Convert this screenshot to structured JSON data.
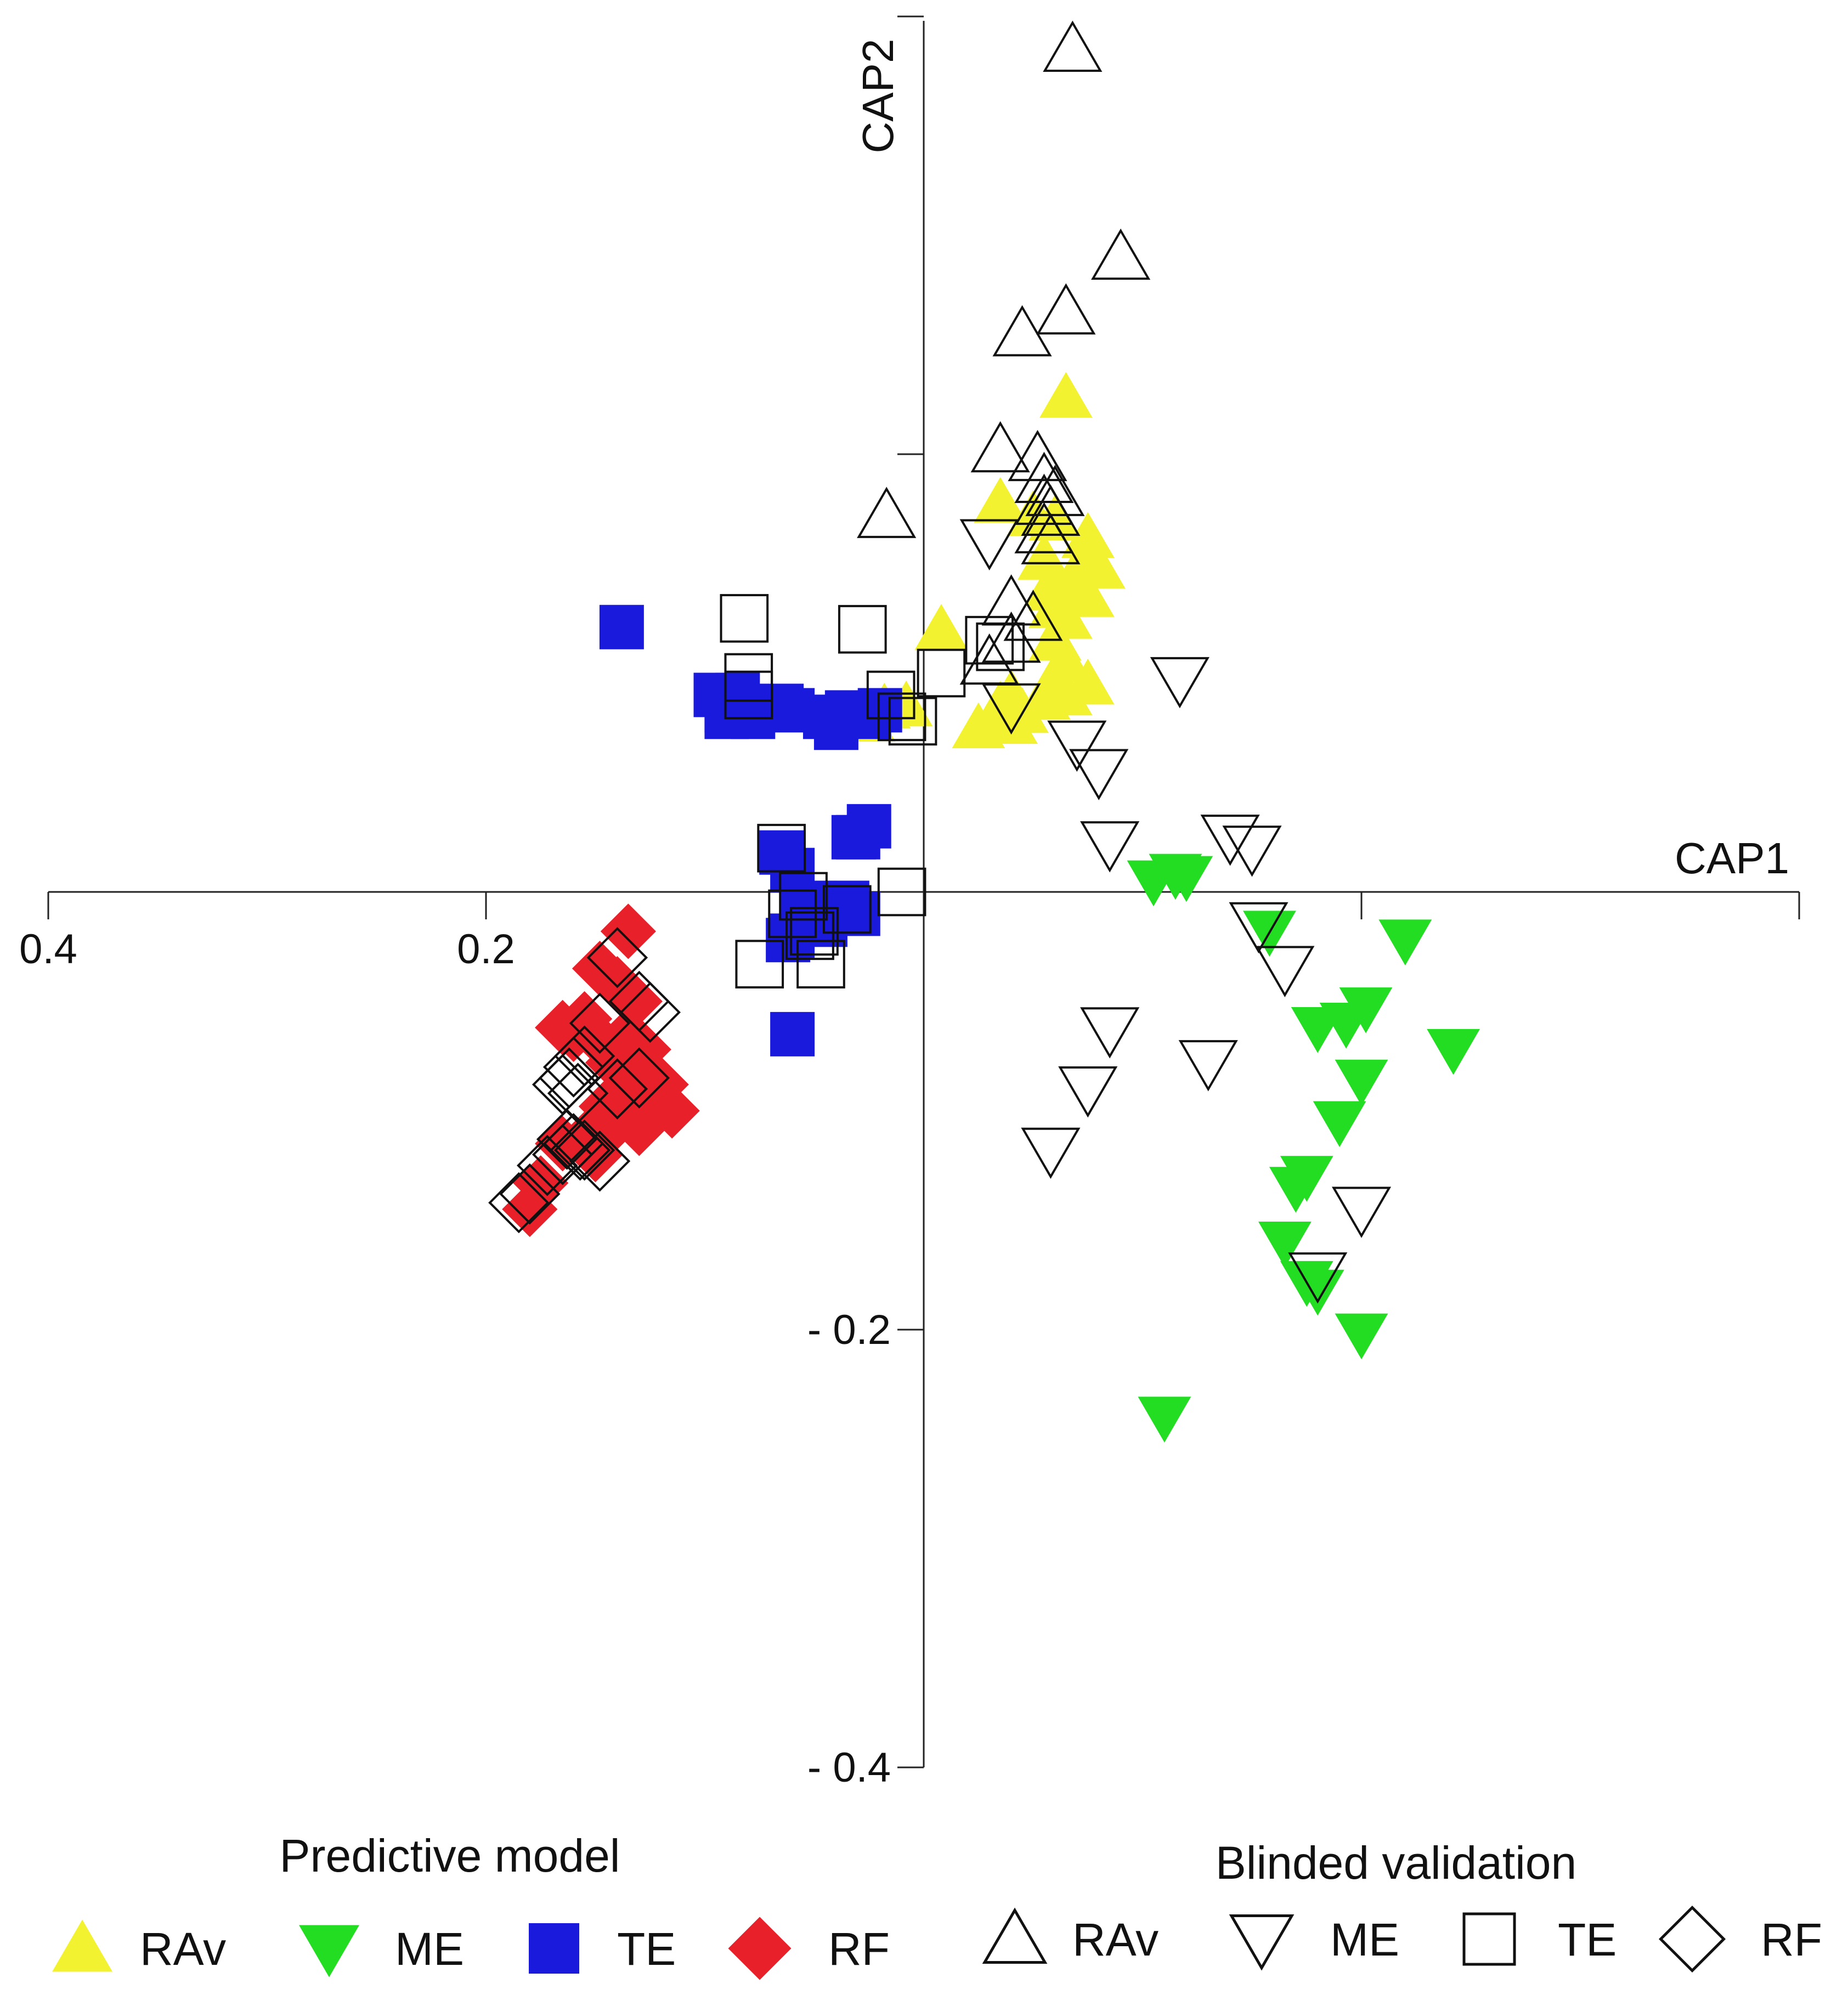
{
  "chart_data": {
    "type": "scatter",
    "title": "",
    "xlabel": "CAP1",
    "ylabel": "CAP2",
    "x_axis": {
      "data_range": [
        0.4,
        -0.4
      ],
      "ticks": [
        {
          "value": 0.4,
          "label": "0.4"
        },
        {
          "value": 0.2,
          "label": "0.2"
        },
        {
          "value": 0.0,
          "label": ""
        },
        {
          "value": -0.2,
          "label": ""
        },
        {
          "value": -0.4,
          "label": ""
        }
      ]
    },
    "y_axis": {
      "data_range": [
        -0.4,
        0.4
      ],
      "ticks": [
        {
          "value": 0.4,
          "label": ""
        },
        {
          "value": 0.2,
          "label": ""
        },
        {
          "value": 0.0,
          "label": ""
        },
        {
          "value": -0.2,
          "label": "- 0.2"
        },
        {
          "value": -0.4,
          "label": "- 0.4"
        }
      ]
    },
    "legend": {
      "groups": [
        {
          "title": "Predictive model",
          "items": [
            "RAv",
            "ME",
            "TE",
            "RF"
          ]
        },
        {
          "title": "Blinded validation",
          "items": [
            "RAv",
            "ME",
            "TE",
            "RF"
          ]
        }
      ]
    },
    "series": [
      {
        "name": "RAv",
        "group": "Predictive model",
        "marker": "triangle-up",
        "filled": true,
        "color": "#f2f230",
        "points": [
          [
            -0.065,
            0.226
          ],
          [
            -0.035,
            0.178
          ],
          [
            -0.05,
            0.172
          ],
          [
            -0.06,
            0.17
          ],
          [
            -0.075,
            0.162
          ],
          [
            -0.075,
            0.155
          ],
          [
            -0.055,
            0.152
          ],
          [
            -0.08,
            0.148
          ],
          [
            -0.07,
            0.142
          ],
          [
            -0.058,
            0.14
          ],
          [
            -0.075,
            0.135
          ],
          [
            -0.06,
            0.138
          ],
          [
            -0.065,
            0.125
          ],
          [
            -0.058,
            0.14
          ],
          [
            -0.06,
            0.13
          ],
          [
            -0.06,
            0.115
          ],
          [
            -0.065,
            0.105
          ],
          [
            -0.06,
            0.098
          ],
          [
            -0.075,
            0.095
          ],
          [
            -0.065,
            0.09
          ],
          [
            -0.055,
            0.088
          ],
          [
            -0.008,
            0.12
          ],
          [
            -0.04,
            0.09
          ],
          [
            -0.045,
            0.082
          ],
          [
            -0.035,
            0.08
          ],
          [
            -0.04,
            0.077
          ],
          [
            -0.025,
            0.075
          ],
          [
            -0.035,
            0.085
          ],
          [
            0.008,
            0.085
          ],
          [
            0.018,
            0.084
          ],
          [
            0.025,
            0.078
          ]
        ]
      },
      {
        "name": "ME",
        "group": "Predictive model",
        "marker": "triangle-down",
        "filled": true,
        "color": "#22dd22",
        "points": [
          [
            -0.105,
            0.005
          ],
          [
            -0.115,
            0.008
          ],
          [
            -0.12,
            0.007
          ],
          [
            -0.158,
            -0.018
          ],
          [
            -0.22,
            -0.022
          ],
          [
            -0.202,
            -0.053
          ],
          [
            -0.18,
            -0.062
          ],
          [
            -0.193,
            -0.06
          ],
          [
            -0.242,
            -0.072
          ],
          [
            -0.2,
            -0.086
          ],
          [
            -0.19,
            -0.105
          ],
          [
            -0.175,
            -0.13
          ],
          [
            -0.17,
            -0.135
          ],
          [
            -0.165,
            -0.16
          ],
          [
            -0.18,
            -0.182
          ],
          [
            -0.2,
            -0.202
          ],
          [
            -0.175,
            -0.178
          ],
          [
            -0.11,
            -0.24
          ]
        ]
      },
      {
        "name": "TE",
        "group": "Predictive model",
        "marker": "square",
        "filled": true,
        "color": "#1a1adc",
        "points": [
          [
            0.138,
            0.121
          ],
          [
            0.095,
            0.09
          ],
          [
            0.09,
            0.083
          ],
          [
            0.085,
            0.09
          ],
          [
            0.09,
            0.08
          ],
          [
            0.078,
            0.08
          ],
          [
            0.065,
            0.085
          ],
          [
            0.06,
            0.083
          ],
          [
            0.045,
            0.08
          ],
          [
            0.04,
            0.075
          ],
          [
            0.035,
            0.082
          ],
          [
            0.025,
            0.08
          ],
          [
            0.02,
            0.083
          ],
          [
            0.032,
            0.025
          ],
          [
            0.03,
            0.025
          ],
          [
            0.025,
            0.03
          ],
          [
            0.065,
            0.018
          ],
          [
            0.06,
            0.01
          ],
          [
            0.05,
            -0.005
          ],
          [
            0.055,
            -0.01
          ],
          [
            0.06,
            -0.02
          ],
          [
            0.035,
            -0.005
          ],
          [
            0.03,
            -0.01
          ],
          [
            0.045,
            -0.015
          ],
          [
            0.06,
            -0.065
          ],
          [
            0.062,
            -0.022
          ]
        ]
      },
      {
        "name": "RF",
        "group": "Predictive model",
        "marker": "diamond",
        "filled": true,
        "color": "#e8202a",
        "points": [
          [
            0.135,
            -0.018
          ],
          [
            0.148,
            -0.035
          ],
          [
            0.14,
            -0.042
          ],
          [
            0.132,
            -0.05
          ],
          [
            0.155,
            -0.058
          ],
          [
            0.165,
            -0.062
          ],
          [
            0.16,
            -0.065
          ],
          [
            0.148,
            -0.068
          ],
          [
            0.135,
            -0.065
          ],
          [
            0.128,
            -0.072
          ],
          [
            0.142,
            -0.078
          ],
          [
            0.13,
            -0.082
          ],
          [
            0.12,
            -0.088
          ],
          [
            0.125,
            -0.095
          ],
          [
            0.115,
            -0.1
          ],
          [
            0.14,
            -0.105
          ],
          [
            0.155,
            -0.113
          ],
          [
            0.165,
            -0.115
          ],
          [
            0.15,
            -0.12
          ],
          [
            0.175,
            -0.133
          ],
          [
            0.18,
            -0.145
          ],
          [
            0.13,
            -0.108
          ],
          [
            0.145,
            -0.098
          ],
          [
            0.135,
            -0.09
          ]
        ]
      },
      {
        "name": "RAv",
        "group": "Blinded validation",
        "marker": "triangle-up",
        "filled": false,
        "color": "#111111",
        "points": [
          [
            -0.068,
            0.385
          ],
          [
            -0.09,
            0.29
          ],
          [
            -0.065,
            0.265
          ],
          [
            -0.045,
            0.255
          ],
          [
            -0.035,
            0.202
          ],
          [
            0.017,
            0.172
          ],
          [
            -0.052,
            0.198
          ],
          [
            -0.055,
            0.188
          ],
          [
            -0.06,
            0.182
          ],
          [
            -0.055,
            0.178
          ],
          [
            -0.058,
            0.173
          ],
          [
            -0.055,
            0.165
          ],
          [
            -0.058,
            0.16
          ],
          [
            -0.04,
            0.132
          ],
          [
            -0.05,
            0.125
          ],
          [
            -0.04,
            0.115
          ],
          [
            -0.03,
            0.105
          ]
        ]
      },
      {
        "name": "ME",
        "group": "Blinded validation",
        "marker": "triangle-down",
        "filled": false,
        "color": "#111111",
        "points": [
          [
            -0.03,
            0.16
          ],
          [
            -0.117,
            0.097
          ],
          [
            -0.04,
            0.085
          ],
          [
            -0.07,
            0.068
          ],
          [
            -0.08,
            0.055
          ],
          [
            -0.085,
            0.022
          ],
          [
            -0.14,
            0.025
          ],
          [
            -0.15,
            0.02
          ],
          [
            -0.153,
            -0.015
          ],
          [
            -0.165,
            -0.035
          ],
          [
            -0.085,
            -0.063
          ],
          [
            -0.13,
            -0.078
          ],
          [
            -0.058,
            -0.118
          ],
          [
            -0.2,
            -0.145
          ],
          [
            -0.18,
            -0.175
          ],
          [
            -0.075,
            -0.09
          ]
        ]
      },
      {
        "name": "TE",
        "group": "Blinded validation",
        "marker": "square",
        "filled": false,
        "color": "#111111",
        "points": [
          [
            0.082,
            0.125
          ],
          [
            0.028,
            0.12
          ],
          [
            0.08,
            0.098
          ],
          [
            0.08,
            0.09
          ],
          [
            0.015,
            0.09
          ],
          [
            0.005,
            0.078
          ],
          [
            0.01,
            0.08
          ],
          [
            -0.008,
            0.1
          ],
          [
            -0.03,
            0.115
          ],
          [
            -0.035,
            0.112
          ],
          [
            0.065,
            0.02
          ],
          [
            0.055,
            -0.002
          ],
          [
            0.06,
            -0.01
          ],
          [
            0.052,
            -0.02
          ],
          [
            0.075,
            -0.033
          ],
          [
            0.047,
            -0.033
          ],
          [
            0.05,
            -0.018
          ],
          [
            0.01,
            0.0
          ],
          [
            0.035,
            -0.008
          ]
        ]
      },
      {
        "name": "RF",
        "group": "Blinded validation",
        "marker": "diamond",
        "filled": false,
        "color": "#111111",
        "points": [
          [
            0.14,
            -0.03
          ],
          [
            0.13,
            -0.05
          ],
          [
            0.125,
            -0.055
          ],
          [
            0.148,
            -0.06
          ],
          [
            0.155,
            -0.075
          ],
          [
            0.16,
            -0.08
          ],
          [
            0.162,
            -0.085
          ],
          [
            0.165,
            -0.088
          ],
          [
            0.158,
            -0.092
          ],
          [
            0.14,
            -0.09
          ],
          [
            0.13,
            -0.085
          ],
          [
            0.16,
            -0.115
          ],
          [
            0.155,
            -0.118
          ],
          [
            0.165,
            -0.12
          ],
          [
            0.172,
            -0.125
          ],
          [
            0.185,
            -0.142
          ],
          [
            0.18,
            -0.138
          ],
          [
            0.163,
            -0.113
          ],
          [
            0.148,
            -0.123
          ],
          [
            0.157,
            -0.118
          ]
        ]
      }
    ]
  }
}
